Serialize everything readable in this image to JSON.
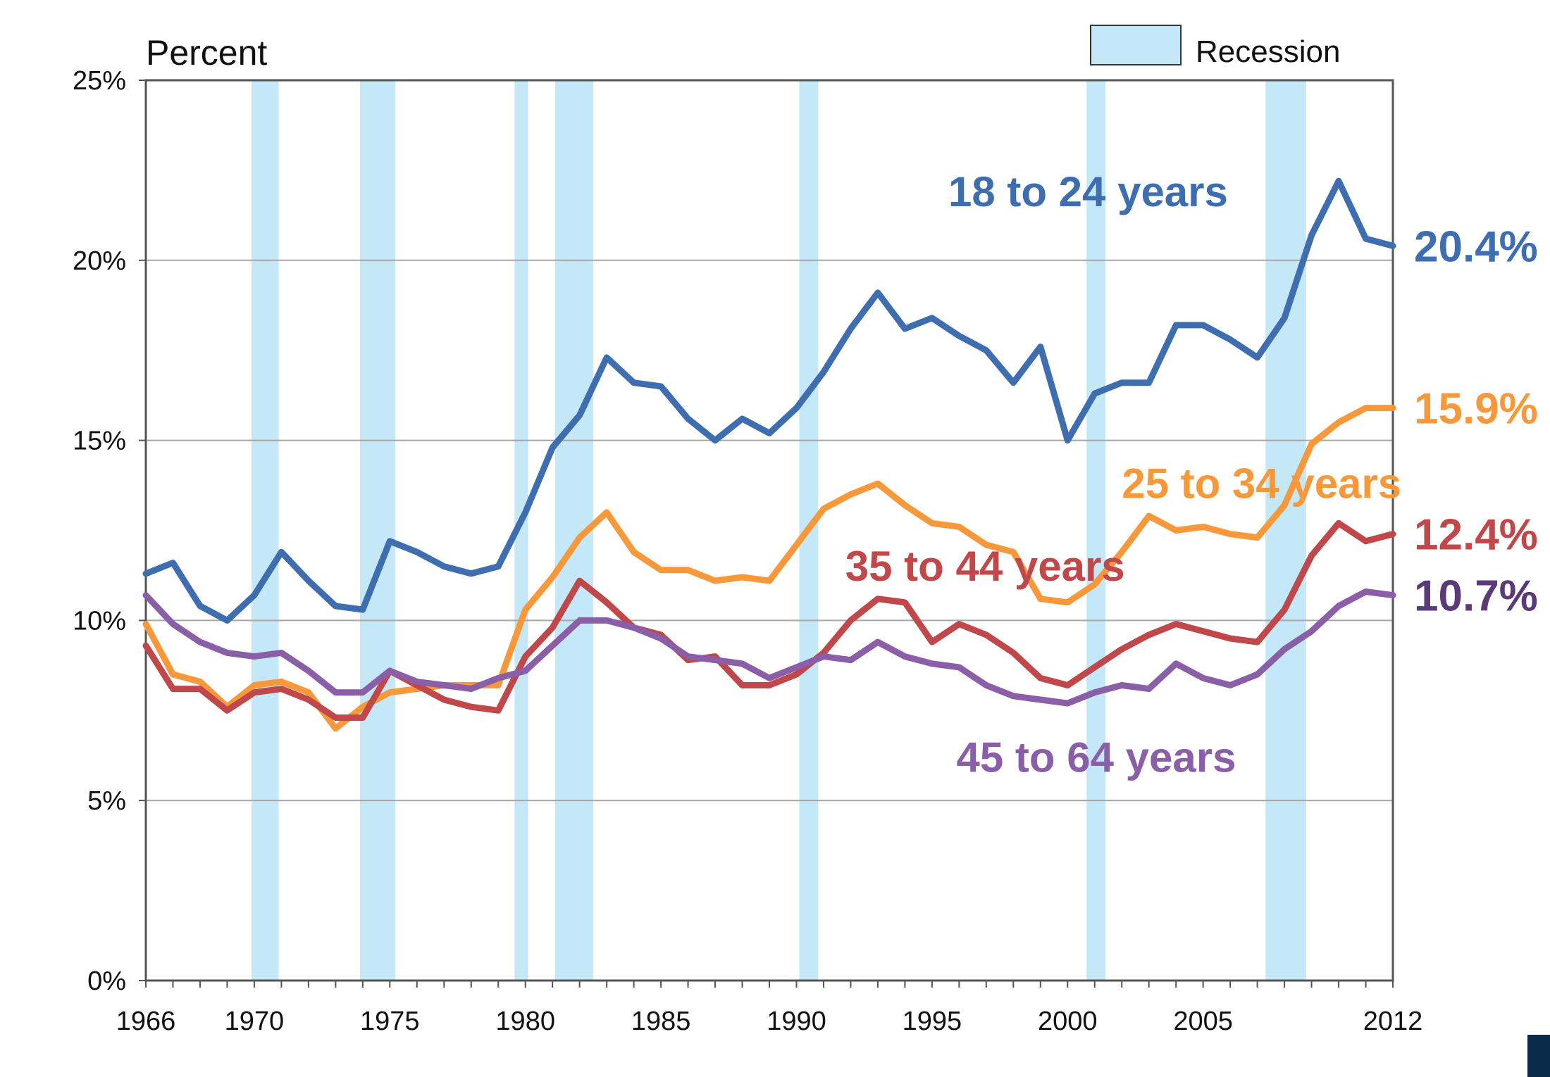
{
  "chart_data": {
    "type": "line",
    "ylabel": "Percent",
    "ylim": [
      0,
      25
    ],
    "xlim": [
      1966,
      2012
    ],
    "grid": true,
    "y_ticks": [
      0,
      5,
      10,
      15,
      20,
      25
    ],
    "y_tick_labels": [
      "0%",
      "5%",
      "10%",
      "15%",
      "20%",
      "25%"
    ],
    "x_ticks": [
      1966,
      1970,
      1975,
      1980,
      1985,
      1990,
      1995,
      2000,
      2005,
      2012
    ],
    "x_tick_labels": [
      "1966",
      "1970",
      "1975",
      "1980",
      "1985",
      "1990",
      "1995",
      "2000",
      "2005",
      "2012"
    ],
    "legend": {
      "label": "Recession",
      "position": "top-right",
      "color": "#c5e8f8"
    },
    "recessions": [
      [
        1969.9,
        1970.9
      ],
      [
        1973.9,
        1975.2
      ],
      [
        1979.6,
        1980.1
      ],
      [
        1981.1,
        1982.5
      ],
      [
        1990.1,
        1990.8
      ],
      [
        2000.7,
        2001.4
      ],
      [
        2007.3,
        2008.8
      ]
    ],
    "x": [
      1966,
      1967,
      1968,
      1969,
      1970,
      1971,
      1972,
      1973,
      1974,
      1975,
      1976,
      1977,
      1978,
      1979,
      1980,
      1981,
      1982,
      1983,
      1984,
      1985,
      1986,
      1987,
      1988,
      1989,
      1990,
      1991,
      1992,
      1993,
      1994,
      1995,
      1996,
      1997,
      1998,
      1999,
      2000,
      2001,
      2002,
      2003,
      2004,
      2005,
      2006,
      2007,
      2008,
      2009,
      2010,
      2011,
      2012
    ],
    "series": [
      {
        "name": "18 to 24 years",
        "label": "18 to 24 years",
        "end_label": "20.4%",
        "color": "#3e6db0",
        "values": [
          11.3,
          11.6,
          10.4,
          10.0,
          10.7,
          11.9,
          11.1,
          10.4,
          10.3,
          12.2,
          11.9,
          11.5,
          11.3,
          11.5,
          13.0,
          14.8,
          15.7,
          17.3,
          16.6,
          16.5,
          15.6,
          15.0,
          15.6,
          15.2,
          15.9,
          16.9,
          18.1,
          19.1,
          18.1,
          18.4,
          17.9,
          17.5,
          16.6,
          17.6,
          15.0,
          16.3,
          16.6,
          16.6,
          18.2,
          18.2,
          17.8,
          17.3,
          18.4,
          20.7,
          22.2,
          20.6,
          20.4
        ]
      },
      {
        "name": "25 to 34 years",
        "label": "25 to 34 years",
        "end_label": "15.9%",
        "color": "#f7993a",
        "values": [
          9.9,
          8.5,
          8.3,
          7.6,
          8.2,
          8.3,
          8.0,
          7.0,
          7.6,
          8.0,
          8.1,
          8.2,
          8.2,
          8.2,
          10.3,
          11.2,
          12.3,
          13.0,
          11.9,
          11.4,
          11.4,
          11.1,
          11.2,
          11.1,
          12.1,
          13.1,
          13.5,
          13.8,
          13.2,
          12.7,
          12.6,
          12.1,
          11.9,
          10.6,
          10.5,
          11.0,
          11.9,
          12.9,
          12.5,
          12.6,
          12.4,
          12.3,
          13.2,
          14.9,
          15.5,
          15.9,
          15.9
        ]
      },
      {
        "name": "35 to 44 years",
        "label": "35 to 44 years",
        "end_label": "12.4%",
        "color": "#c0474a",
        "values": [
          9.3,
          8.1,
          8.1,
          7.5,
          8.0,
          8.1,
          7.8,
          7.3,
          7.3,
          8.6,
          8.2,
          7.8,
          7.6,
          7.5,
          9.0,
          9.8,
          11.1,
          10.5,
          9.8,
          9.6,
          8.9,
          9.0,
          8.2,
          8.2,
          8.5,
          9.1,
          10.0,
          10.6,
          10.5,
          9.4,
          9.9,
          9.6,
          9.1,
          8.4,
          8.2,
          8.7,
          9.2,
          9.6,
          9.9,
          9.7,
          9.5,
          9.4,
          10.3,
          11.8,
          12.7,
          12.2,
          12.4
        ]
      },
      {
        "name": "45 to 64 years",
        "label": "45 to 64 years",
        "end_label": "10.7%",
        "color": "#8a5fa8",
        "values": [
          10.7,
          9.9,
          9.4,
          9.1,
          9.0,
          9.1,
          8.6,
          8.0,
          8.0,
          8.6,
          8.3,
          8.2,
          8.1,
          8.4,
          8.6,
          9.3,
          10.0,
          10.0,
          9.8,
          9.5,
          9.0,
          8.9,
          8.8,
          8.4,
          8.7,
          9.0,
          8.9,
          9.4,
          9.0,
          8.8,
          8.7,
          8.2,
          7.9,
          7.8,
          7.7,
          8.0,
          8.2,
          8.1,
          8.8,
          8.4,
          8.2,
          8.5,
          9.2,
          9.7,
          10.4,
          10.8,
          10.7
        ]
      }
    ],
    "series_label_anchors": [
      {
        "x": 1995.6,
        "y": 21.5
      },
      {
        "x": 2002.0,
        "y": 13.4
      },
      {
        "x": 1991.8,
        "y": 11.1
      },
      {
        "x": 1995.9,
        "y": 5.8
      }
    ],
    "end_label_colors": [
      "#3e6db0",
      "#f7993a",
      "#c0474a",
      "#5b3a78"
    ]
  }
}
